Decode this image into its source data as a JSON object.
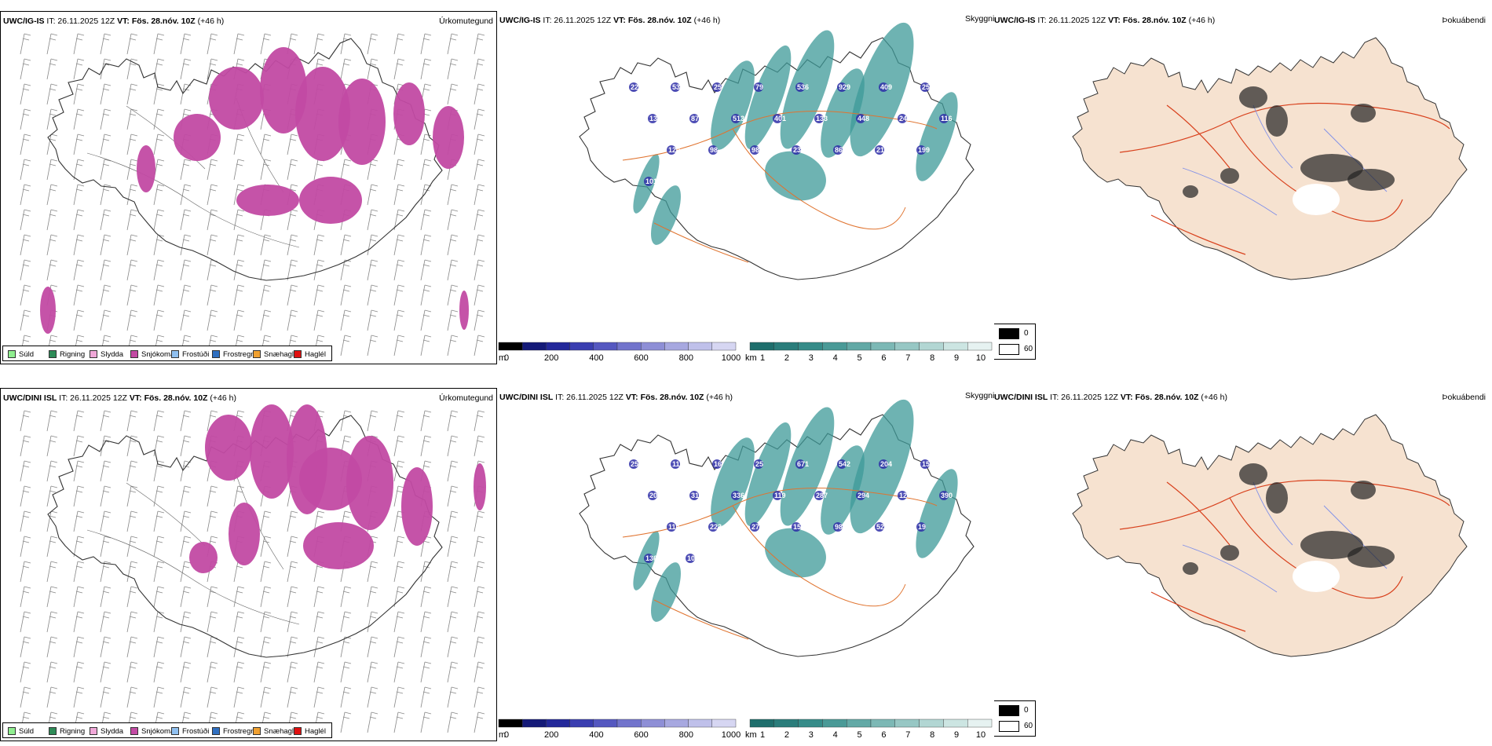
{
  "colors": {
    "snow": "#c24aa3",
    "teal": "#3e9a98",
    "teal_light": "#9fd0cd",
    "cloud_base": "#2f2fa8",
    "land": "#f6e2d0",
    "roads": "#e07430",
    "road_red": "#d8401c",
    "rivers": "#8090e8"
  },
  "rows": [
    {
      "panels": [
        {
          "model": "UWC/IG-IS",
          "it_prefix": "IT: 26.11.2025 12Z",
          "vt_prefix": "VT:",
          "vt_value": "Fös. 28.nóv. 10Z",
          "lead": "(+46 h)",
          "type_label": "Úrkomutegund"
        },
        {
          "model": "UWC/IG-IS",
          "it_prefix": "IT: 26.11.2025 12Z",
          "vt_prefix": "VT:",
          "vt_value": "Fös. 28.nóv. 10Z",
          "lead": "(+46 h)",
          "type_label": "Skyggni",
          "cloud_labels": [
            "228",
            "537",
            "25",
            "79",
            "536",
            "929",
            "409",
            "25",
            "139",
            "87",
            "513",
            "401",
            "133",
            "448",
            "242",
            "116",
            "120",
            "98",
            "98",
            "232",
            "86",
            "212",
            "199",
            "101"
          ]
        },
        {
          "model": "UWC/IG-IS",
          "it_prefix": "IT: 26.11.2025 12Z",
          "vt_prefix": "VT:",
          "vt_value": "Fös. 28.nóv. 10Z",
          "lead": "(+46 h)",
          "type_label": "Þokuábendi"
        }
      ]
    },
    {
      "panels": [
        {
          "model": "UWC/DINI ISL",
          "it_prefix": "IT: 26.11.2025 12Z",
          "vt_prefix": "VT:",
          "vt_value": "Fös. 28.nóv. 10Z",
          "lead": "(+46 h)",
          "type_label": "Úrkomutegund"
        },
        {
          "model": "UWC/DINI ISL",
          "it_prefix": "IT: 26.11.2025 12Z",
          "vt_prefix": "VT:",
          "vt_value": "Fös. 28.nóv. 10Z",
          "lead": "(+46 h)",
          "type_label": "Skyggni",
          "cloud_labels": [
            "251",
            "112",
            "16",
            "25",
            "671",
            "542",
            "204",
            "154",
            "205",
            "316",
            "336",
            "119",
            "287",
            "294",
            "120",
            "390",
            "114",
            "223",
            "272",
            "159",
            "98",
            "52",
            "19",
            "136",
            "104"
          ]
        },
        {
          "model": "UWC/DINI ISL",
          "it_prefix": "IT: 26.11.2025 12Z",
          "vt_prefix": "VT:",
          "vt_value": "Fös. 28.nóv. 10Z",
          "lead": "(+46 h)",
          "type_label": "Þokuábendi"
        }
      ]
    }
  ],
  "precip_legend": [
    {
      "label": "Súld",
      "color": "#90ee90"
    },
    {
      "label": "Rigning",
      "color": "#2e8b57"
    },
    {
      "label": "Slydda",
      "color": "#f0a8d8"
    },
    {
      "label": "Snjókoma",
      "color": "#c24aa3"
    },
    {
      "label": "Frostúði",
      "color": "#90c0f0"
    },
    {
      "label": "Frostregn",
      "color": "#2f6fc0"
    },
    {
      "label": "Snæhagl",
      "color": "#f0a030"
    },
    {
      "label": "Haglél",
      "color": "#e01010"
    }
  ],
  "cloudbase_bar": {
    "unit": "m",
    "ticks": [
      "0",
      "200",
      "400",
      "600",
      "800",
      "1000"
    ],
    "colors": [
      "#000000",
      "#141a78",
      "#23289a",
      "#3a3eb0",
      "#5558c0",
      "#7274cc",
      "#8e8fd6",
      "#a7a8e0",
      "#bfc0ea",
      "#d6d6f2"
    ]
  },
  "visibility_bar": {
    "unit": "km",
    "ticks": [
      "1",
      "2",
      "3",
      "4",
      "5",
      "6",
      "7",
      "8",
      "9",
      "10"
    ],
    "colors": [
      "#1e6e6c",
      "#2a7d7b",
      "#368c89",
      "#4a9a97",
      "#62a9a6",
      "#7cb8b5",
      "#97c7c4",
      "#b2d6d3",
      "#ccE5e2",
      "#e6f2f1"
    ]
  },
  "fog_legend": [
    {
      "label": "0",
      "color": "#000000"
    },
    {
      "label": "60",
      "color": "#ffffff"
    }
  ]
}
